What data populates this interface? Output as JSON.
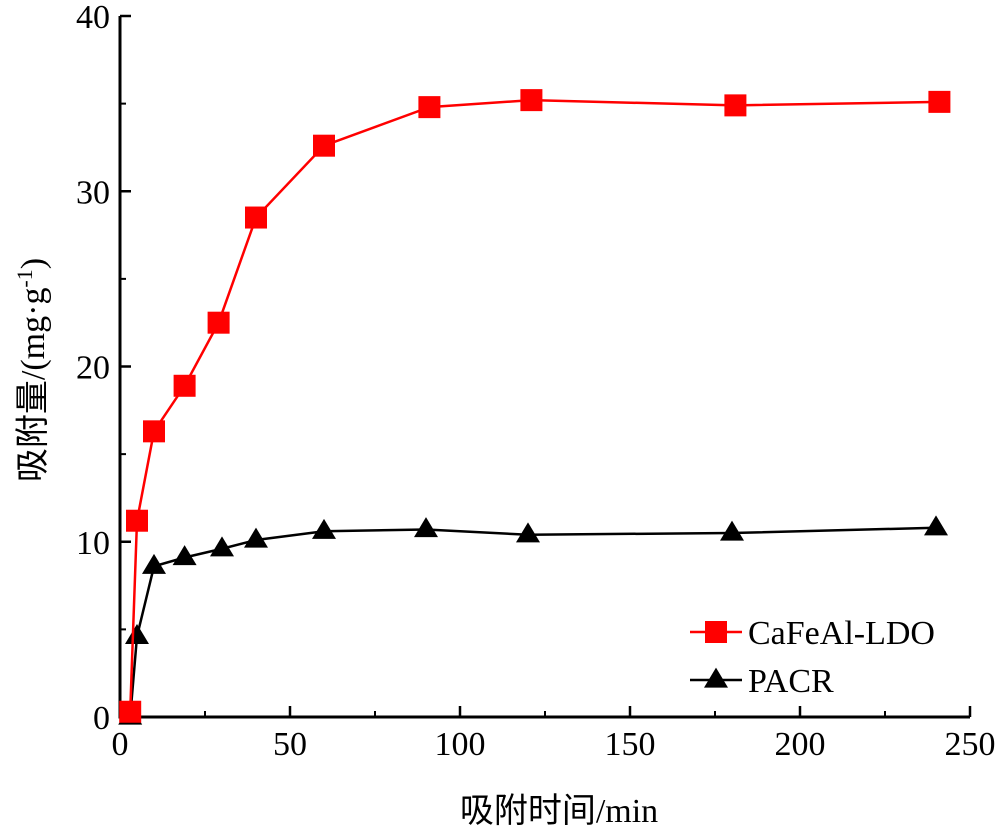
{
  "chart_data": {
    "type": "line",
    "xlabel": "吸附时间/min",
    "ylabel_main": "吸附量/(mg·g",
    "ylabel_sup": "-1",
    "ylabel_close": ")",
    "xlim": [
      0,
      250
    ],
    "ylim": [
      0,
      40
    ],
    "xticks": [
      0,
      50,
      100,
      150,
      200,
      250
    ],
    "yticks": [
      0,
      10,
      20,
      30,
      40
    ],
    "grid": false,
    "legend_position": "bottom-right",
    "series": [
      {
        "name": "CaFeAl-LDO",
        "color": "#ff0000",
        "marker": "square",
        "x": [
          3,
          5,
          10,
          19,
          29,
          40,
          60,
          91,
          121,
          181,
          241
        ],
        "y": [
          0.3,
          11.2,
          16.3,
          18.9,
          22.5,
          28.5,
          32.6,
          34.8,
          35.2,
          34.9,
          35.1
        ]
      },
      {
        "name": "PACR",
        "color": "#000000",
        "marker": "triangle",
        "x": [
          3,
          5,
          10,
          19,
          30,
          40,
          60,
          90,
          120,
          180,
          240
        ],
        "y": [
          0,
          4.6,
          8.6,
          9.1,
          9.6,
          10.1,
          10.6,
          10.7,
          10.4,
          10.5,
          10.8
        ]
      }
    ]
  }
}
